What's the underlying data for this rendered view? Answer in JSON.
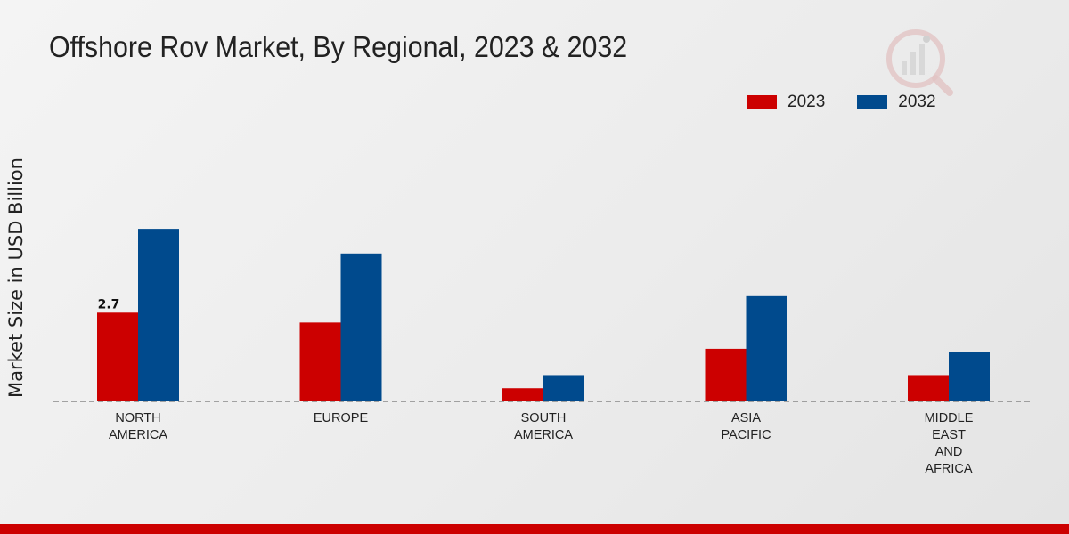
{
  "chart_data": {
    "type": "bar",
    "title": "Offshore Rov Market, By Regional, 2023 & 2032",
    "xlabel": "",
    "ylabel": "Market Size in USD Billion",
    "categories": [
      [
        "NORTH",
        "AMERICA"
      ],
      [
        "EUROPE"
      ],
      [
        "SOUTH",
        "AMERICA"
      ],
      [
        "ASIA",
        "PACIFIC"
      ],
      [
        "MIDDLE",
        "EAST",
        "AND",
        "AFRICA"
      ]
    ],
    "series": [
      {
        "name": "2023",
        "color": "#cc0000",
        "values": [
          2.7,
          2.4,
          0.4,
          1.6,
          0.8
        ]
      },
      {
        "name": "2032",
        "color": "#004a8d",
        "values": [
          5.25,
          4.5,
          0.8,
          3.2,
          1.5
        ]
      }
    ],
    "data_labels": [
      {
        "series": 0,
        "index": 0,
        "text": "2.7"
      }
    ],
    "ylim": [
      0,
      8
    ],
    "grid": false,
    "legend": "top-right"
  }
}
